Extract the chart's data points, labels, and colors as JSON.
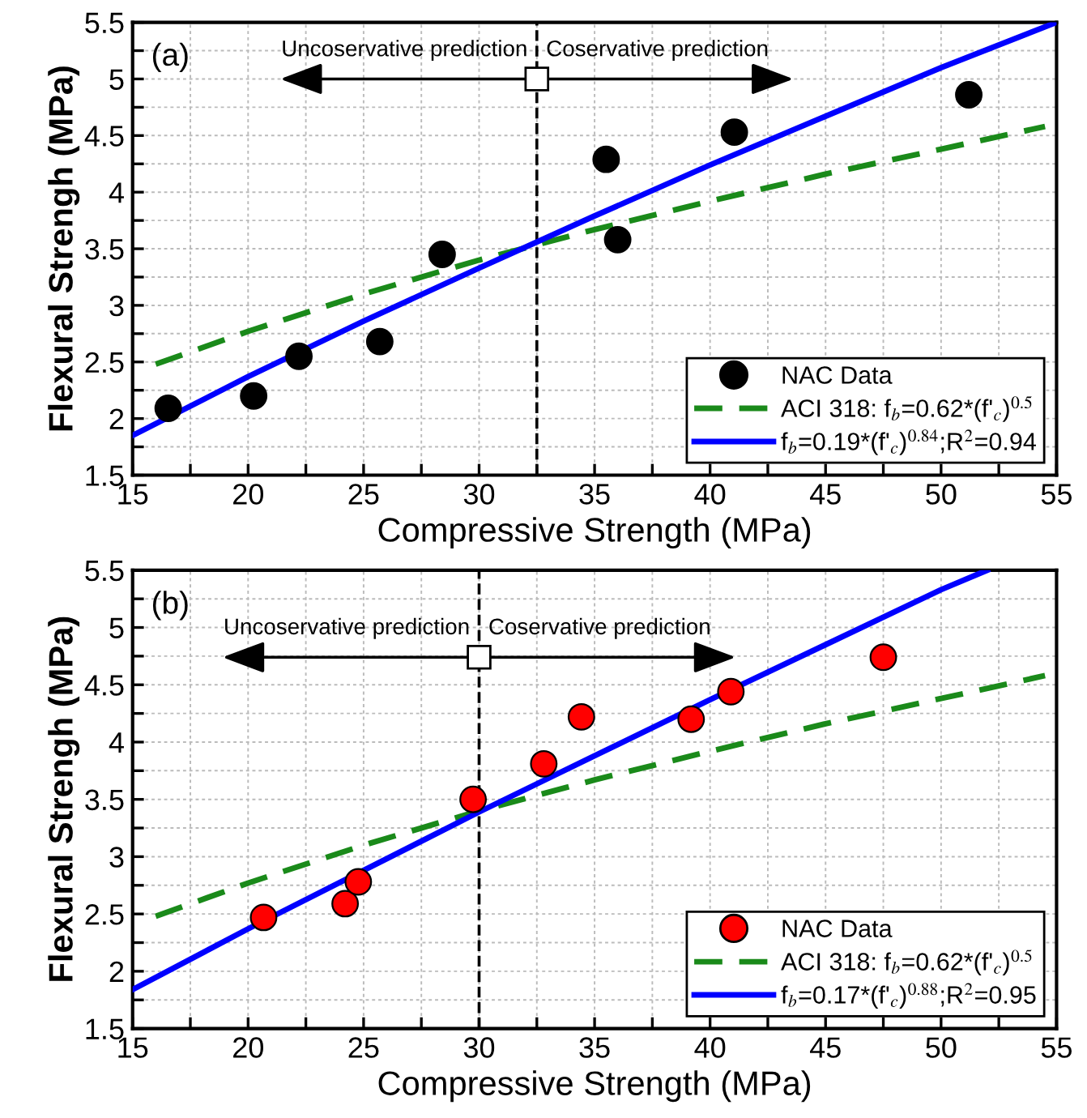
{
  "chart_data": [
    {
      "type": "scatter",
      "xlabel": "Compressive Strength (MPa)",
      "ylabel": "Flexural Strengh (MPa)",
      "xlim": [
        15,
        55
      ],
      "ylim": [
        1.5,
        5.5
      ],
      "xticks": [
        15,
        {
          "value": 17.5,
          "label": null
        },
        20,
        {
          "value": 22.5,
          "label": null
        },
        25,
        {
          "value": 27.5,
          "label": null
        },
        30,
        {
          "value": 32.5,
          "label": null
        },
        35,
        {
          "value": 37.5,
          "label": null
        },
        40,
        {
          "value": 42.5,
          "label": null
        },
        45,
        {
          "value": 47.5,
          "label": null
        },
        50,
        {
          "value": 52.5,
          "label": null
        },
        55
      ],
      "yticks": [
        1.5,
        {
          "value": 1.75,
          "label": null
        },
        2,
        {
          "value": 2.25,
          "label": null
        },
        2.5,
        {
          "value": 2.75,
          "label": null
        },
        3,
        {
          "value": 3.25,
          "label": null
        },
        3.5,
        {
          "value": 3.75,
          "label": null
        },
        4,
        {
          "value": 4.25,
          "label": null
        },
        4.5,
        {
          "value": 4.75,
          "label": null
        },
        5,
        {
          "value": 5.25,
          "label": null
        },
        5.5
      ],
      "grid": true,
      "legend": "lower right",
      "ref_lines": [
        {
          "axis": "x",
          "value": 32.5,
          "color": "#000000",
          "line_style": "dashed"
        }
      ],
      "annotations": [
        "(a)",
        "Uncoservative prediction",
        "Coservative prediction"
      ],
      "series": [
        {
          "name": "NAC Data",
          "color": "#000000",
          "marker": "circle",
          "x": [
            16.54,
            20.24,
            22.2,
            25.7,
            28.4,
            35.5,
            36.0,
            41.05,
            51.2
          ],
          "values": [
            2.09,
            2.2,
            2.55,
            2.68,
            3.45,
            4.29,
            3.58,
            4.53,
            4.86
          ]
        },
        {
          "name": "ACI 318: f$_{b}$=0.62*(f'$_{c}$)$^{0.5}$",
          "type": "line",
          "color": "#1a8a1a",
          "line_style": "dashed",
          "x": [
            16,
            20,
            25,
            30,
            35,
            40,
            45,
            50,
            54.5
          ],
          "values": [
            2.48,
            2.77,
            3.1,
            3.4,
            3.67,
            3.92,
            4.16,
            4.38,
            4.58
          ]
        },
        {
          "name": "f$_{b}$=0.19*(f'$_{c}$)$^{0.84}$;R$^{2}$=0.94",
          "type": "line",
          "color": "#0000ff",
          "line_style": "solid",
          "x": [
            15,
            20,
            25,
            30,
            35,
            40,
            45,
            50,
            55
          ],
          "values": [
            1.85,
            2.37,
            2.86,
            3.33,
            3.79,
            4.24,
            4.67,
            5.1,
            5.5
          ]
        }
      ]
    },
    {
      "type": "scatter",
      "xlabel": "Compressive Strength (MPa)",
      "ylabel": "Flexural Strengh (MPa)",
      "xlim": [
        15,
        55
      ],
      "ylim": [
        1.5,
        5.5
      ],
      "xticks": [
        15,
        {
          "value": 17.5,
          "label": null
        },
        20,
        {
          "value": 22.5,
          "label": null
        },
        25,
        {
          "value": 27.5,
          "label": null
        },
        30,
        {
          "value": 32.5,
          "label": null
        },
        35,
        {
          "value": 37.5,
          "label": null
        },
        40,
        {
          "value": 42.5,
          "label": null
        },
        45,
        {
          "value": 47.5,
          "label": null
        },
        50,
        {
          "value": 52.5,
          "label": null
        },
        55
      ],
      "yticks": [
        1.5,
        {
          "value": 1.75,
          "label": null
        },
        2,
        {
          "value": 2.25,
          "label": null
        },
        2.5,
        {
          "value": 2.75,
          "label": null
        },
        3,
        {
          "value": 3.25,
          "label": null
        },
        3.5,
        {
          "value": 3.75,
          "label": null
        },
        4,
        {
          "value": 4.25,
          "label": null
        },
        4.5,
        {
          "value": 4.75,
          "label": null
        },
        5,
        {
          "value": 5.25,
          "label": null
        },
        5.5
      ],
      "grid": true,
      "legend": "lower right",
      "ref_lines": [
        {
          "axis": "x",
          "value": 30,
          "color": "#000000",
          "line_style": "dashed"
        }
      ],
      "annotations": [
        "(b)",
        "Uncoservative prediction",
        "Coservative prediction"
      ],
      "series": [
        {
          "name": "NAC Data",
          "color": "#ff0000",
          "marker": "circle",
          "x": [
            20.67,
            24.2,
            24.77,
            29.74,
            32.8,
            34.43,
            39.18,
            40.9,
            47.5
          ],
          "values": [
            2.47,
            2.59,
            2.78,
            3.5,
            3.81,
            4.22,
            4.2,
            4.44,
            4.74
          ]
        },
        {
          "name": "ACI 318: f$_{b}$=0.62*(f'$_{c}$)$^{0.5}$",
          "type": "line",
          "color": "#1a8a1a",
          "line_style": "dashed",
          "x": [
            16,
            20,
            25,
            30,
            35,
            40,
            45,
            50,
            54.5
          ],
          "values": [
            2.48,
            2.77,
            3.1,
            3.4,
            3.67,
            3.92,
            4.16,
            4.38,
            4.58
          ]
        },
        {
          "name": "f$_{b}$=0.17*(f'$_{c}$)$^{0.88}$;R$^{2}$=0.95",
          "type": "line",
          "color": "#0000ff",
          "line_style": "solid",
          "x": [
            15,
            20,
            25,
            30,
            35,
            40,
            45,
            50,
            52
          ],
          "values": [
            1.84,
            2.37,
            2.88,
            3.39,
            3.88,
            4.37,
            4.85,
            5.33,
            5.5
          ]
        }
      ]
    }
  ]
}
